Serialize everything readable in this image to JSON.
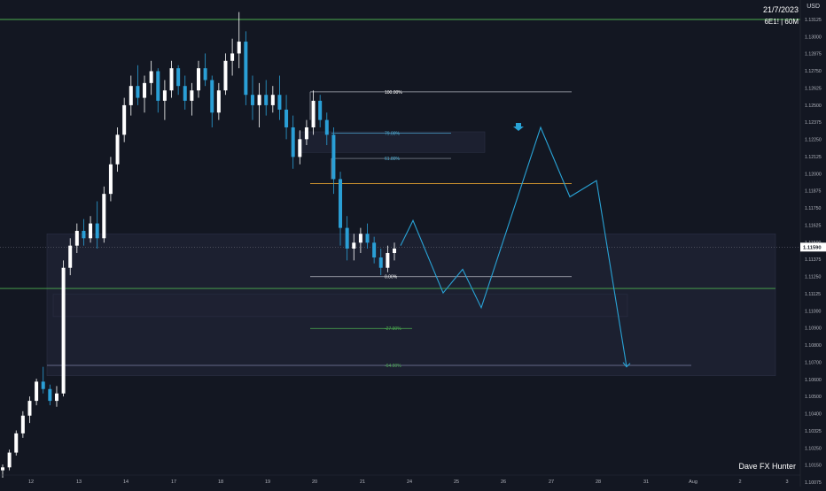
{
  "header": {
    "date": "21/7/2023",
    "symbol": "6E1! | 60M",
    "currency": "USD"
  },
  "watermark": "Dave FX Hunter",
  "colors": {
    "background": "#131722",
    "candle": "#ffffff",
    "candle_dark": "#2a9fd6",
    "projection": "#29a3d6",
    "level_green": "#4caf50",
    "level_orange": "#e0a030",
    "zone": "#1e2233",
    "zone_border": "#2a2f44"
  },
  "chart_data": {
    "type": "candlestick",
    "title": "",
    "x_ticks": [
      "12",
      "13",
      "14",
      "17",
      "18",
      "19",
      "20",
      "21",
      "24",
      "25",
      "26",
      "27",
      "28",
      "31",
      "Aug",
      "2",
      "3"
    ],
    "y_ticks": [
      "1.13125",
      "1.13000",
      "1.12875",
      "1.12750",
      "1.12625",
      "1.12500",
      "1.12375",
      "1.12250",
      "1.12125",
      "1.12000",
      "1.11875",
      "1.11750",
      "1.11625",
      "1.11500",
      "1.11375",
      "1.11250",
      "1.11125",
      "1.11000",
      "1.10900",
      "1.10800",
      "1.10700",
      "1.10600",
      "1.10500",
      "1.10400",
      "1.10325",
      "1.10250",
      "1.10150",
      "1.10075"
    ],
    "current_price": "1.11590",
    "fibonacci_levels": [
      {
        "label": "100.00%",
        "price": 1.1264
      },
      {
        "label": "79.00%",
        "price": 1.1236
      },
      {
        "label": "61.80%",
        "price": 1.1219
      },
      {
        "label": "0.00%",
        "price": 1.1139
      },
      {
        "label": "-27.00%",
        "price": 1.1104
      },
      {
        "label": "-64.00%",
        "price": 1.1079
      }
    ],
    "horizontal_levels": [
      {
        "name": "top resistance",
        "price": 1.1313
      },
      {
        "name": "support",
        "price": 1.1131
      },
      {
        "name": "mid",
        "price": 1.1202
      }
    ],
    "zones": [
      {
        "name": "supply zone",
        "top": 1.1237,
        "bottom": 1.1223
      },
      {
        "name": "large demand zone",
        "top": 1.1168,
        "bottom": 1.1072
      },
      {
        "name": "inner zone",
        "top": 1.1127,
        "bottom": 1.1112
      }
    ],
    "projection_path": [
      1.116,
      1.1177,
      1.1128,
      1.1144,
      1.1118,
      1.124,
      1.1193,
      1.1204,
      1.1078
    ],
    "candles": [
      {
        "o": 1.1008,
        "h": 1.1012,
        "l": 1.1003,
        "c": 1.101
      },
      {
        "o": 1.101,
        "h": 1.1022,
        "l": 1.1008,
        "c": 1.102
      },
      {
        "o": 1.102,
        "h": 1.1035,
        "l": 1.1018,
        "c": 1.1033
      },
      {
        "o": 1.1033,
        "h": 1.1048,
        "l": 1.103,
        "c": 1.1045
      },
      {
        "o": 1.1045,
        "h": 1.1058,
        "l": 1.104,
        "c": 1.1055
      },
      {
        "o": 1.1055,
        "h": 1.107,
        "l": 1.1052,
        "c": 1.1068
      },
      {
        "o": 1.1068,
        "h": 1.1078,
        "l": 1.106,
        "c": 1.1063
      },
      {
        "o": 1.1063,
        "h": 1.1066,
        "l": 1.1052,
        "c": 1.1055
      },
      {
        "o": 1.1055,
        "h": 1.1065,
        "l": 1.1051,
        "c": 1.106
      },
      {
        "o": 1.106,
        "h": 1.115,
        "l": 1.1058,
        "c": 1.1145
      },
      {
        "o": 1.1145,
        "h": 1.1165,
        "l": 1.114,
        "c": 1.116
      },
      {
        "o": 1.116,
        "h": 1.1175,
        "l": 1.1155,
        "c": 1.117
      },
      {
        "o": 1.117,
        "h": 1.1178,
        "l": 1.116,
        "c": 1.1165
      },
      {
        "o": 1.1165,
        "h": 1.118,
        "l": 1.1162,
        "c": 1.1175
      },
      {
        "o": 1.1175,
        "h": 1.119,
        "l": 1.1158,
        "c": 1.1165
      },
      {
        "o": 1.1165,
        "h": 1.12,
        "l": 1.1162,
        "c": 1.1195
      },
      {
        "o": 1.1195,
        "h": 1.122,
        "l": 1.119,
        "c": 1.1215
      },
      {
        "o": 1.1215,
        "h": 1.124,
        "l": 1.121,
        "c": 1.1235
      },
      {
        "o": 1.1235,
        "h": 1.126,
        "l": 1.123,
        "c": 1.1255
      },
      {
        "o": 1.1255,
        "h": 1.1275,
        "l": 1.1248,
        "c": 1.1268
      },
      {
        "o": 1.1268,
        "h": 1.1282,
        "l": 1.1255,
        "c": 1.126
      },
      {
        "o": 1.126,
        "h": 1.1275,
        "l": 1.125,
        "c": 1.127
      },
      {
        "o": 1.127,
        "h": 1.1285,
        "l": 1.1262,
        "c": 1.1278
      },
      {
        "o": 1.1278,
        "h": 1.128,
        "l": 1.125,
        "c": 1.1258
      },
      {
        "o": 1.1258,
        "h": 1.1272,
        "l": 1.1245,
        "c": 1.1265
      },
      {
        "o": 1.1265,
        "h": 1.1285,
        "l": 1.126,
        "c": 1.128
      },
      {
        "o": 1.128,
        "h": 1.1282,
        "l": 1.1262,
        "c": 1.1268
      },
      {
        "o": 1.1268,
        "h": 1.1275,
        "l": 1.1252,
        "c": 1.1258
      },
      {
        "o": 1.1258,
        "h": 1.127,
        "l": 1.1248,
        "c": 1.1265
      },
      {
        "o": 1.1265,
        "h": 1.1285,
        "l": 1.126,
        "c": 1.128
      },
      {
        "o": 1.128,
        "h": 1.129,
        "l": 1.1268,
        "c": 1.1272
      },
      {
        "o": 1.1272,
        "h": 1.1275,
        "l": 1.124,
        "c": 1.125
      },
      {
        "o": 1.125,
        "h": 1.127,
        "l": 1.1245,
        "c": 1.1265
      },
      {
        "o": 1.1265,
        "h": 1.129,
        "l": 1.1262,
        "c": 1.1285
      },
      {
        "o": 1.1285,
        "h": 1.13,
        "l": 1.1275,
        "c": 1.129
      },
      {
        "o": 1.129,
        "h": 1.1318,
        "l": 1.128,
        "c": 1.1298
      },
      {
        "o": 1.1298,
        "h": 1.1305,
        "l": 1.1255,
        "c": 1.1262
      },
      {
        "o": 1.1262,
        "h": 1.1275,
        "l": 1.1245,
        "c": 1.1255
      },
      {
        "o": 1.1255,
        "h": 1.127,
        "l": 1.124,
        "c": 1.1262
      },
      {
        "o": 1.1262,
        "h": 1.1272,
        "l": 1.1248,
        "c": 1.1255
      },
      {
        "o": 1.1255,
        "h": 1.1268,
        "l": 1.125,
        "c": 1.1262
      },
      {
        "o": 1.1262,
        "h": 1.1275,
        "l": 1.1245,
        "c": 1.1252
      },
      {
        "o": 1.1252,
        "h": 1.1262,
        "l": 1.1232,
        "c": 1.124
      },
      {
        "o": 1.124,
        "h": 1.1248,
        "l": 1.1212,
        "c": 1.122
      },
      {
        "o": 1.122,
        "h": 1.1238,
        "l": 1.1215,
        "c": 1.1232
      },
      {
        "o": 1.1232,
        "h": 1.1245,
        "l": 1.1228,
        "c": 1.124
      },
      {
        "o": 1.124,
        "h": 1.1265,
        "l": 1.1235,
        "c": 1.1258
      },
      {
        "o": 1.1258,
        "h": 1.1262,
        "l": 1.124,
        "c": 1.1245
      },
      {
        "o": 1.1245,
        "h": 1.125,
        "l": 1.1228,
        "c": 1.1235
      },
      {
        "o": 1.1235,
        "h": 1.124,
        "l": 1.1195,
        "c": 1.1205
      },
      {
        "o": 1.1205,
        "h": 1.121,
        "l": 1.116,
        "c": 1.1172
      },
      {
        "o": 1.1172,
        "h": 1.118,
        "l": 1.115,
        "c": 1.1158
      },
      {
        "o": 1.1158,
        "h": 1.1168,
        "l": 1.115,
        "c": 1.1162
      },
      {
        "o": 1.1162,
        "h": 1.1172,
        "l": 1.1155,
        "c": 1.1168
      },
      {
        "o": 1.1168,
        "h": 1.1175,
        "l": 1.1158,
        "c": 1.1162
      },
      {
        "o": 1.1162,
        "h": 1.1166,
        "l": 1.1148,
        "c": 1.1152
      },
      {
        "o": 1.1152,
        "h": 1.1158,
        "l": 1.114,
        "c": 1.1145
      },
      {
        "o": 1.1145,
        "h": 1.116,
        "l": 1.1142,
        "c": 1.1155
      },
      {
        "o": 1.1155,
        "h": 1.1162,
        "l": 1.115,
        "c": 1.1158
      }
    ]
  }
}
